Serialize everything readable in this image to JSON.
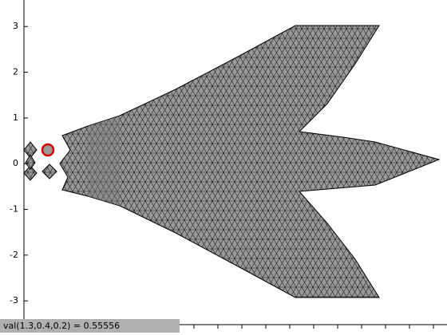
{
  "plot": {
    "ylim": [
      -3.52,
      3.58
    ],
    "yticks": [
      3,
      2,
      1,
      0,
      -1,
      -2,
      -3
    ]
  },
  "status": "val(1.3,0.4,0.2) = 0.55556"
}
